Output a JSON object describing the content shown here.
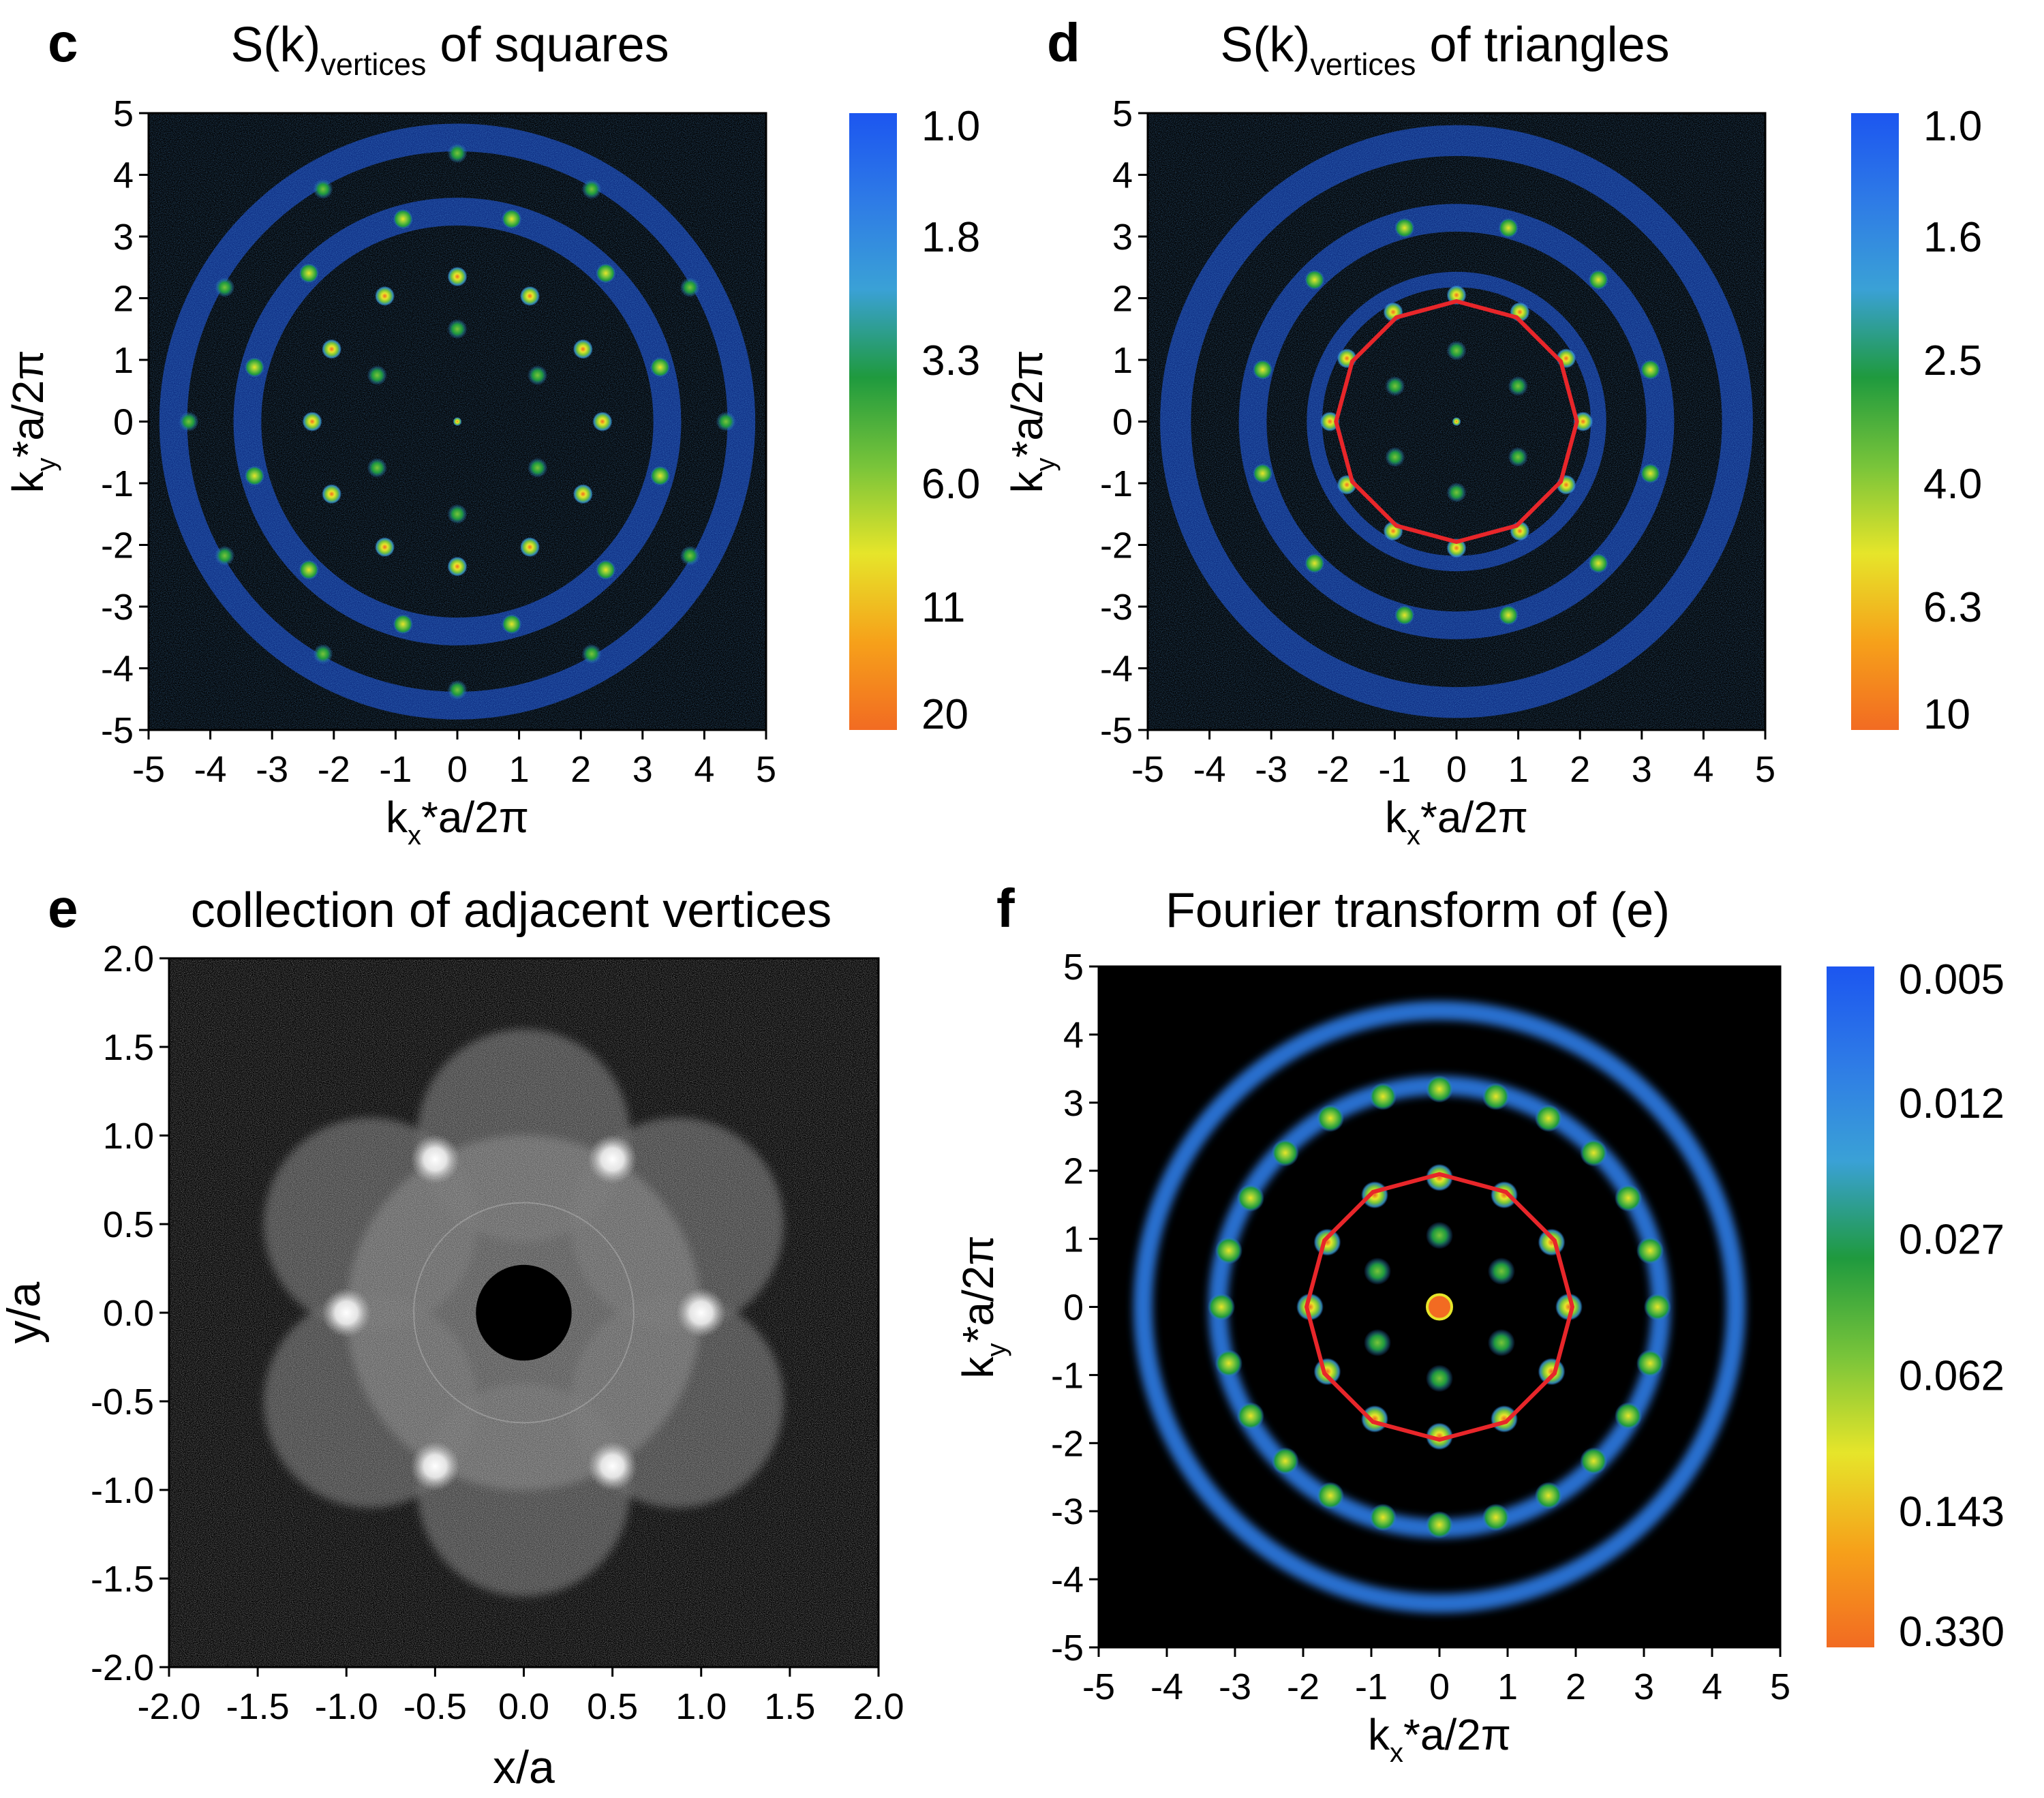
{
  "chart_data": [
    {
      "panel": "c",
      "type": "heatmap",
      "title": "S(k)vertices of squares",
      "title_main": "S(k)",
      "title_sub": "vertices",
      "title_tail": " of squares",
      "xlabel_main": "k",
      "xlabel_sub": "x",
      "xlabel_tail": "*a/2π",
      "ylabel_main": "k",
      "ylabel_sub": "y",
      "ylabel_tail": "*a/2π",
      "xlim": [
        -5,
        5
      ],
      "ylim": [
        -5,
        5
      ],
      "xticks": [
        "-5",
        "-4",
        "-3",
        "-2",
        "-1",
        "0",
        "1",
        "2",
        "3",
        "4",
        "5"
      ],
      "yticks": [
        "5",
        "4",
        "3",
        "2",
        "1",
        "0",
        "-1",
        "-2",
        "-3",
        "-4",
        "-5"
      ],
      "colorbar_ticks": [
        "1.0",
        "1.8",
        "3.3",
        "6.0",
        "11",
        "20"
      ],
      "rings": [
        {
          "r": 2.35,
          "n": 12,
          "phase": 0,
          "val": 0.85
        },
        {
          "r": 1.5,
          "n": 6,
          "phase": 90,
          "val": 0.3
        },
        {
          "r": 3.4,
          "n": 12,
          "phase": 15,
          "val": 0.45
        },
        {
          "r": 4.35,
          "n": 12,
          "phase": 0,
          "val": 0.25
        }
      ],
      "bands": [
        {
          "r": 3.4,
          "w": 0.45
        },
        {
          "r": 4.6,
          "w": 0.45
        }
      ],
      "peak_center": 1.0
    },
    {
      "panel": "d",
      "type": "heatmap",
      "title": "S(k)vertices of triangles",
      "title_main": "S(k)",
      "title_sub": "vertices",
      "title_tail": " of triangles",
      "xlabel_main": "k",
      "xlabel_sub": "x",
      "xlabel_tail": "*a/2π",
      "ylabel_main": "k",
      "ylabel_sub": "y",
      "ylabel_tail": "*a/2π",
      "xlim": [
        -5,
        5
      ],
      "ylim": [
        -5,
        5
      ],
      "xticks": [
        "-5",
        "-4",
        "-3",
        "-2",
        "-1",
        "0",
        "1",
        "2",
        "3",
        "4",
        "5"
      ],
      "yticks": [
        "5",
        "4",
        "3",
        "2",
        "1",
        "0",
        "-1",
        "-2",
        "-3",
        "-4",
        "-5"
      ],
      "colorbar_ticks": [
        "1.0",
        "1.6",
        "2.5",
        "4.0",
        "6.3",
        "10"
      ],
      "rings": [
        {
          "r": 2.05,
          "n": 12,
          "phase": 0,
          "val": 0.7
        },
        {
          "r": 1.15,
          "n": 6,
          "phase": 30,
          "val": 0.25
        },
        {
          "r": 3.25,
          "n": 12,
          "phase": 15,
          "val": 0.45
        }
      ],
      "bands": [
        {
          "r": 2.3,
          "w": 0.25
        },
        {
          "r": 3.3,
          "w": 0.45
        },
        {
          "r": 4.55,
          "w": 0.5
        }
      ],
      "dodecagon": {
        "r": 1.95,
        "n": 12
      },
      "peak_center": 1.0
    },
    {
      "panel": "e",
      "type": "heatmap",
      "title": "collection of adjacent vertices",
      "xlabel": "x/a",
      "ylabel": "y/a",
      "xlim": [
        -2.0,
        2.0
      ],
      "ylim": [
        -2.0,
        2.0
      ],
      "xticks": [
        "-2.0",
        "-1.5",
        "-1.0",
        "-0.5",
        "0.0",
        "0.5",
        "1.0",
        "1.5",
        "2.0"
      ],
      "yticks": [
        "2.0",
        "1.5",
        "1.0",
        "0.5",
        "0.0",
        "-0.5",
        "-1.0",
        "-1.5",
        "-2.0"
      ],
      "hex_spots": {
        "r": 1.0,
        "n": 6,
        "phase": 0
      },
      "hole_radius": 0.27
    },
    {
      "panel": "f",
      "type": "heatmap",
      "title": "Fourier transform of (e)",
      "xlabel_main": "k",
      "xlabel_sub": "x",
      "xlabel_tail": "*a/2π",
      "ylabel_main": "k",
      "ylabel_sub": "y",
      "ylabel_tail": "*a/2π",
      "xlim": [
        -5,
        5
      ],
      "ylim": [
        -5,
        5
      ],
      "xticks": [
        "-5",
        "-4",
        "-3",
        "-2",
        "-1",
        "0",
        "1",
        "2",
        "3",
        "4",
        "5"
      ],
      "yticks": [
        "5",
        "4",
        "3",
        "2",
        "1",
        "0",
        "-1",
        "-2",
        "-3",
        "-4",
        "-5"
      ],
      "colorbar_ticks": [
        "0.005",
        "0.012",
        "0.027",
        "0.062",
        "0.143",
        "0.330"
      ],
      "rings": [
        {
          "r": 1.9,
          "n": 12,
          "phase": 0,
          "val": 0.65
        },
        {
          "r": 1.05,
          "n": 6,
          "phase": 30,
          "val": 0.25
        },
        {
          "r": 3.2,
          "n": 24,
          "phase": 0,
          "val": 0.5
        }
      ],
      "bands": [
        {
          "r": 3.25,
          "w": 0.28
        },
        {
          "r": 4.35,
          "w": 0.28
        }
      ],
      "dodecagon": {
        "r": 1.95,
        "n": 12
      },
      "peak_center": 1.0
    }
  ],
  "colors": {
    "background_plot": "#000000",
    "dodecagon": "#e8262a",
    "colormap": [
      "#1c56f0",
      "#2e7be6",
      "#3aa1d6",
      "#1f9a3e",
      "#78c43a",
      "#e6e52a",
      "#f6a11a",
      "#f26b22"
    ]
  }
}
